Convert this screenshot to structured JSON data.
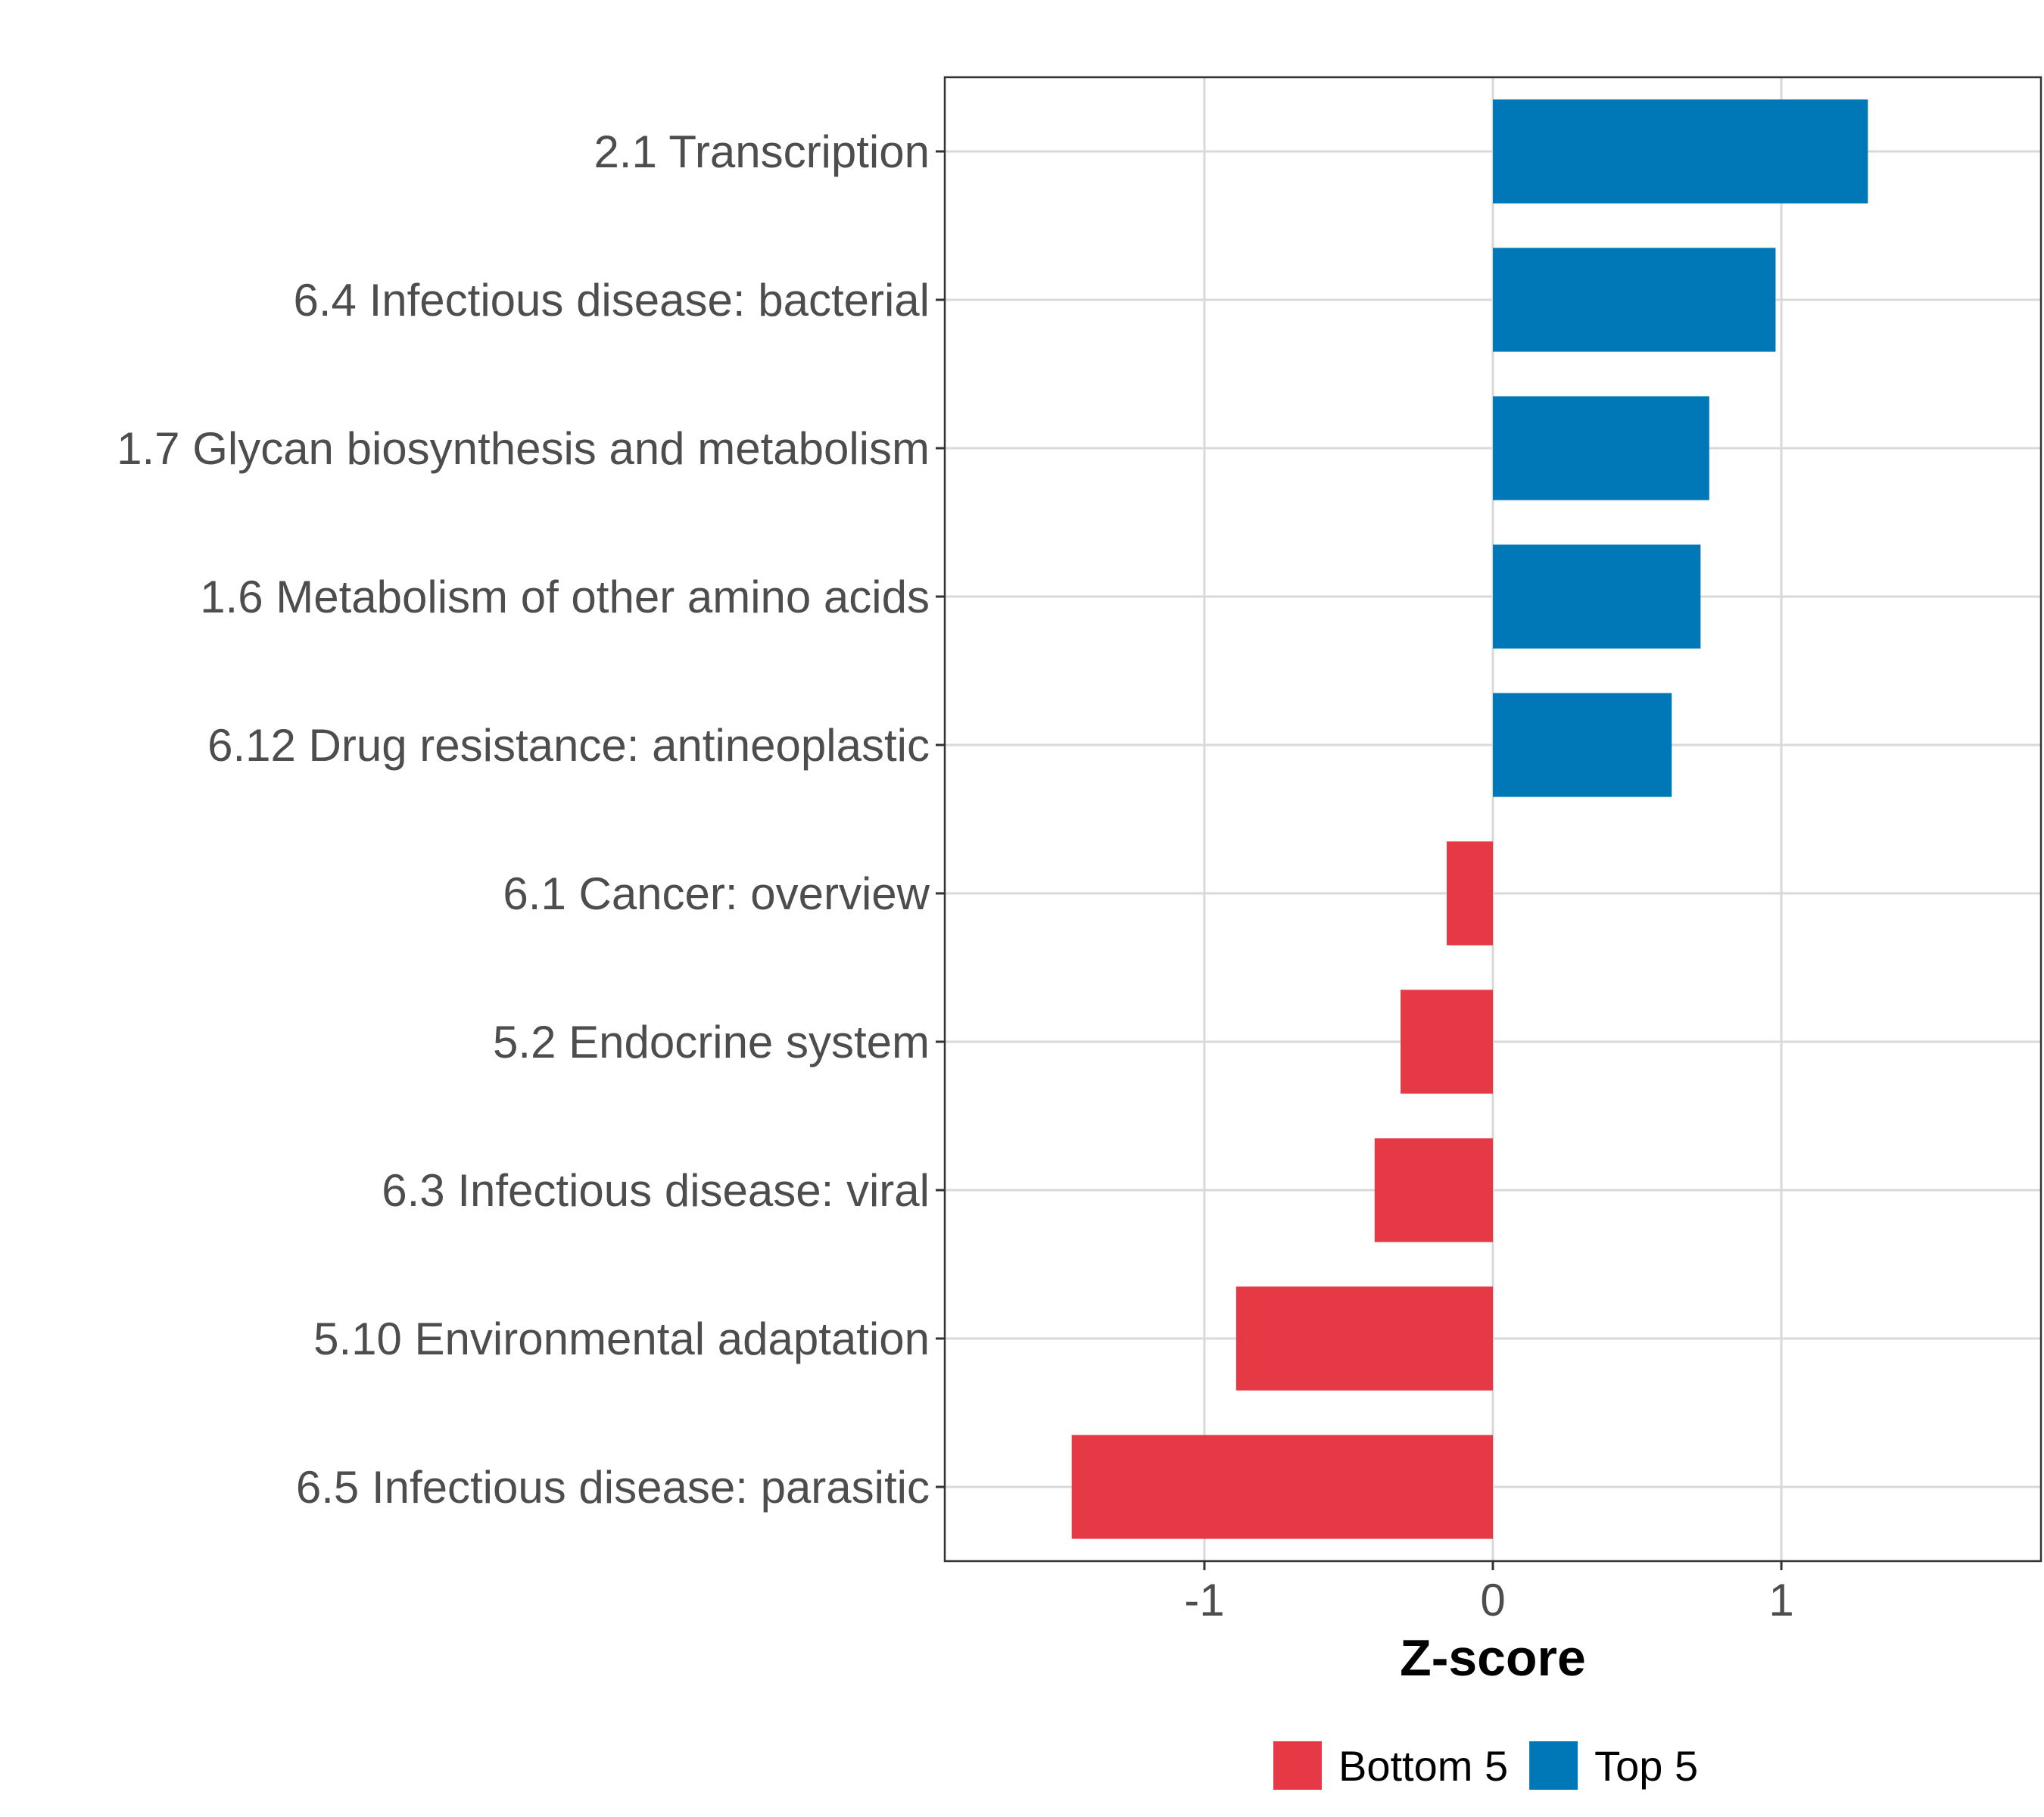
{
  "chart_data": {
    "type": "bar",
    "orientation": "horizontal",
    "title": "",
    "xlabel": "Z-score",
    "ylabel": "",
    "xlim": [
      -1.9,
      1.9
    ],
    "xticks": [
      -1,
      0,
      1
    ],
    "xtick_labels": [
      "-1",
      "0",
      "1"
    ],
    "grid": true,
    "legend_position": "bottom",
    "categories": [
      "2.1 Transcription",
      "6.4 Infectious disease: bacterial",
      "1.7 Glycan biosynthesis and metabolism",
      "1.6 Metabolism of other amino acids",
      "6.12 Drug resistance: antineoplastic",
      "6.1 Cancer: overview",
      "5.2 Endocrine system",
      "6.3 Infectious disease: viral",
      "5.10 Environmental adaptation",
      "6.5 Infectious disease: parasitic"
    ],
    "values": [
      1.3,
      0.98,
      0.75,
      0.72,
      0.62,
      -0.16,
      -0.32,
      -0.41,
      -0.89,
      -1.46
    ],
    "groups": [
      "Top 5",
      "Top 5",
      "Top 5",
      "Top 5",
      "Top 5",
      "Bottom 5",
      "Bottom 5",
      "Bottom 5",
      "Bottom 5",
      "Bottom 5"
    ],
    "legend": [
      {
        "name": "Bottom 5",
        "color": "#e63946"
      },
      {
        "name": "Top 5",
        "color": "#0077b6"
      }
    ]
  }
}
